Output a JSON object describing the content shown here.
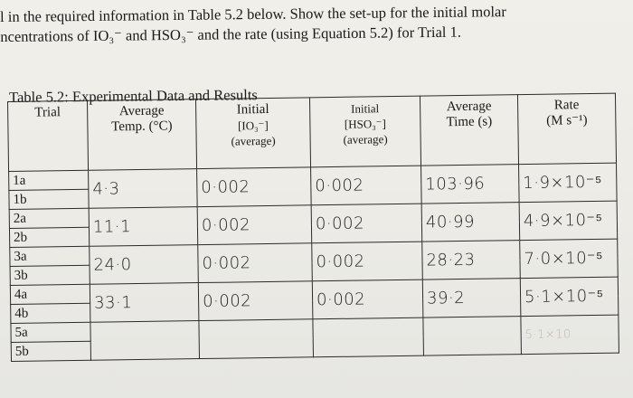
{
  "instructions": {
    "line1": "l in the required information in Table 5.2 below. Show the set-up for the initial molar",
    "line2": "ncentrations of IO₃⁻ and  HSO₃⁻ and the rate (using Equation 5.2) for Trial 1."
  },
  "table": {
    "caption": "Table 5.2: Experimental Data and Results",
    "headers": {
      "trial": "Trial",
      "avg_temp": [
        "Average",
        "Temp. (°C)"
      ],
      "initial_io3": [
        "Initial",
        "[IO₃⁻]",
        "(average)"
      ],
      "initial_hso3": [
        "Initial",
        "[HSO₃⁻]",
        "(average)"
      ],
      "avg_time": [
        "Average",
        "Time (s)"
      ],
      "rate": [
        "Rate",
        "(M s⁻¹)"
      ]
    },
    "trials": [
      {
        "a": "1a",
        "b": "1b",
        "temp": "4·3",
        "io3": "0·002",
        "hso3": "0·002",
        "time": "103·96",
        "rate": "1·9×10⁻⁵"
      },
      {
        "a": "2a",
        "b": "2b",
        "temp": "11·1",
        "io3": "0·002",
        "hso3": "0·002",
        "time": "40·99",
        "rate": "4·9×10⁻⁵"
      },
      {
        "a": "3a",
        "b": "3b",
        "temp": "24·0",
        "io3": "0·002",
        "hso3": "0·002",
        "time": "28·23",
        "rate": "7·0×10⁻⁵"
      },
      {
        "a": "4a",
        "b": "4b",
        "temp": "33·1",
        "io3": "0·002",
        "hso3": "0·002",
        "time": "39·2",
        "rate": "5·1×10⁻⁵"
      },
      {
        "a": "5a",
        "b": "5b",
        "temp": "",
        "io3": "",
        "hso3": "",
        "time": "",
        "rate": "5·1×10"
      }
    ]
  }
}
